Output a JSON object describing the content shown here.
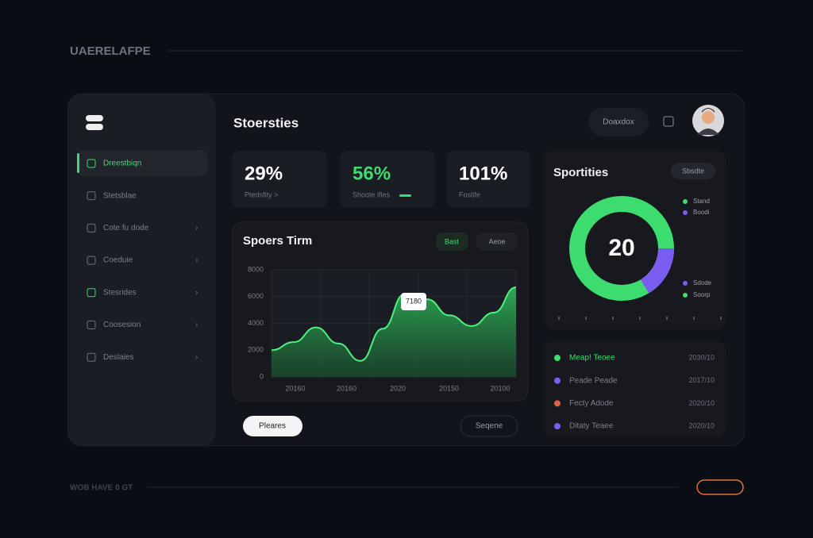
{
  "header": {
    "brand": "UAERELAFPE"
  },
  "sidebar": {
    "items": [
      "Dreestbiqn",
      "Stetsblae",
      "Cote fu dode",
      "Coeduie",
      "Stesrides",
      "Coosesion",
      "Deslaies"
    ]
  },
  "topbar": {
    "title": "Stoersties",
    "button": "Doaxdox"
  },
  "stats": [
    {
      "value": "29%",
      "label": "Ptedsfity >"
    },
    {
      "value": "56%",
      "label": "Shoote ifles"
    },
    {
      "value": "101%",
      "label": "Fostife"
    }
  ],
  "trend": {
    "title": "Spoers Tirm",
    "chips": [
      "Bast",
      "Aeoe"
    ],
    "tooltip": "7180",
    "ylim": [
      0,
      8000
    ],
    "yticks": [
      0,
      2000,
      4000,
      6000,
      8000
    ],
    "x_labels": [
      "20160",
      "20160",
      "2020",
      "20150",
      "20100"
    ],
    "values": [
      2000,
      2600,
      3700,
      2500,
      1200,
      3600,
      6200,
      5800,
      4600,
      3800,
      4800,
      6700
    ]
  },
  "donut": {
    "title": "Sportities",
    "button": "Sbsdte",
    "center": "20",
    "legend": [
      "Stand",
      "Boodi",
      "Sdode",
      "Soorp"
    ]
  },
  "list": {
    "rows": [
      {
        "name": "Meap! Teoee",
        "value": "2030/10"
      },
      {
        "name": "Peade Peade",
        "value": "2017/10"
      },
      {
        "name": "Fecty Adode",
        "value": "2020/10"
      },
      {
        "name": "Ditaty Teaee",
        "value": "2020/10"
      }
    ]
  },
  "actions": [
    "Pleares",
    "Seqene"
  ],
  "footer": {
    "text": "WOB HAVE 0 GT"
  }
}
